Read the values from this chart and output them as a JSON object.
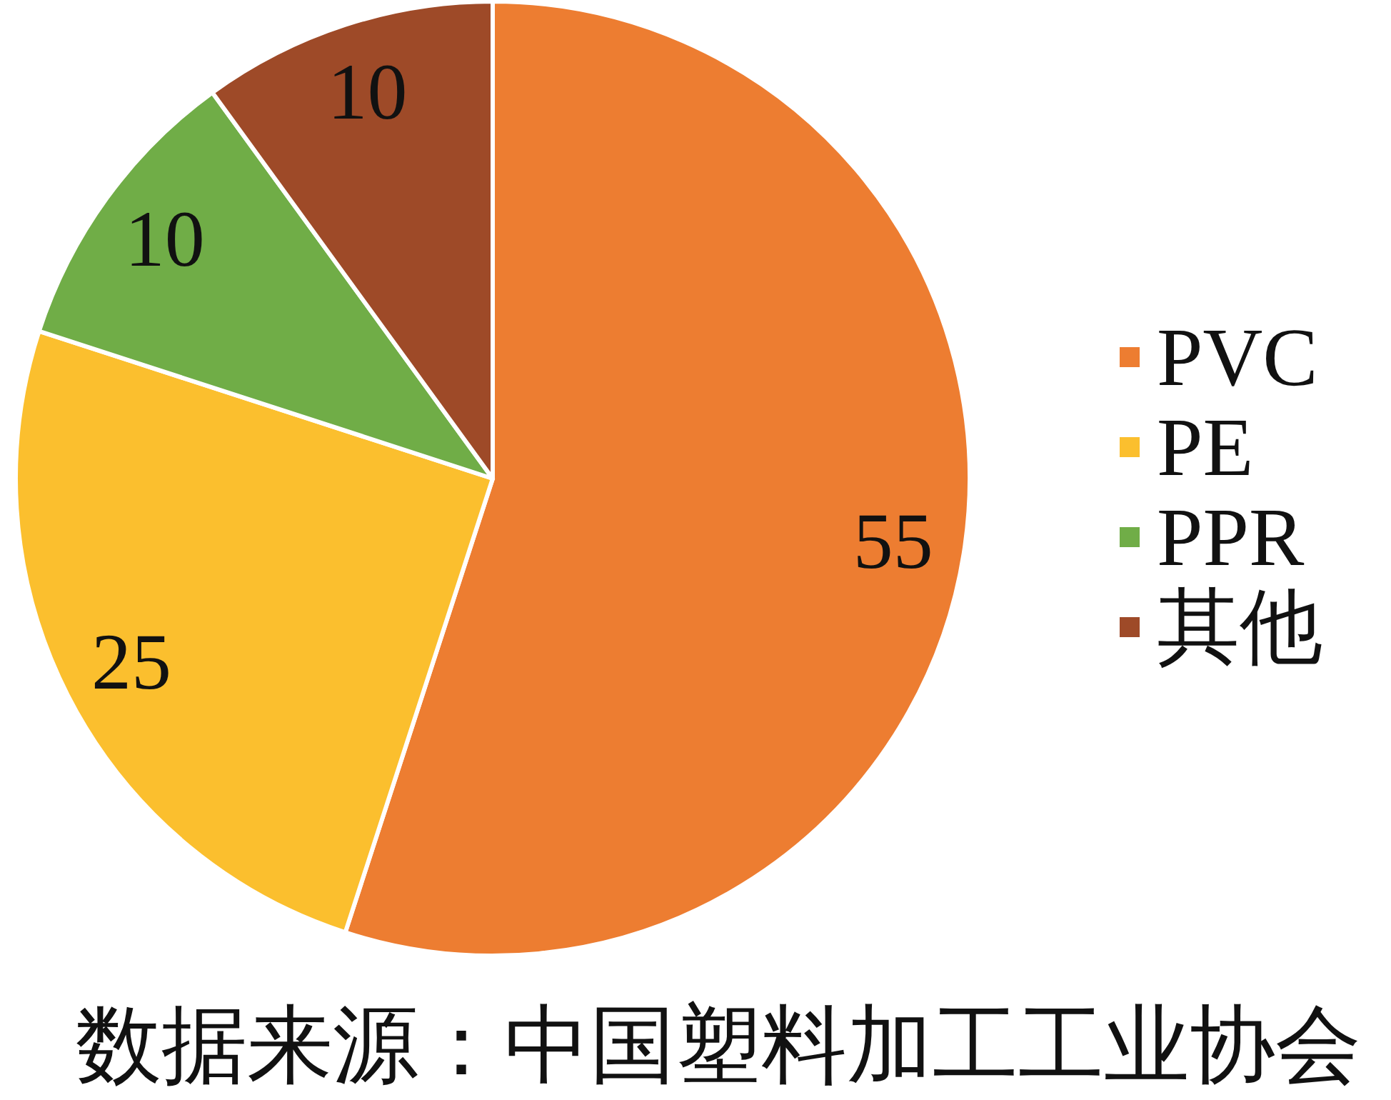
{
  "chart_data": {
    "type": "pie",
    "categories": [
      "PVC",
      "PE",
      "PPR",
      "其他"
    ],
    "values": [
      55,
      25,
      10,
      10
    ],
    "colors": [
      "#ed7d31",
      "#fbbf2e",
      "#70ad47",
      "#9e4a28"
    ],
    "data_labels": true,
    "legend": "right",
    "annotations": [
      "数据来源：中国塑料加工工业协会"
    ]
  }
}
